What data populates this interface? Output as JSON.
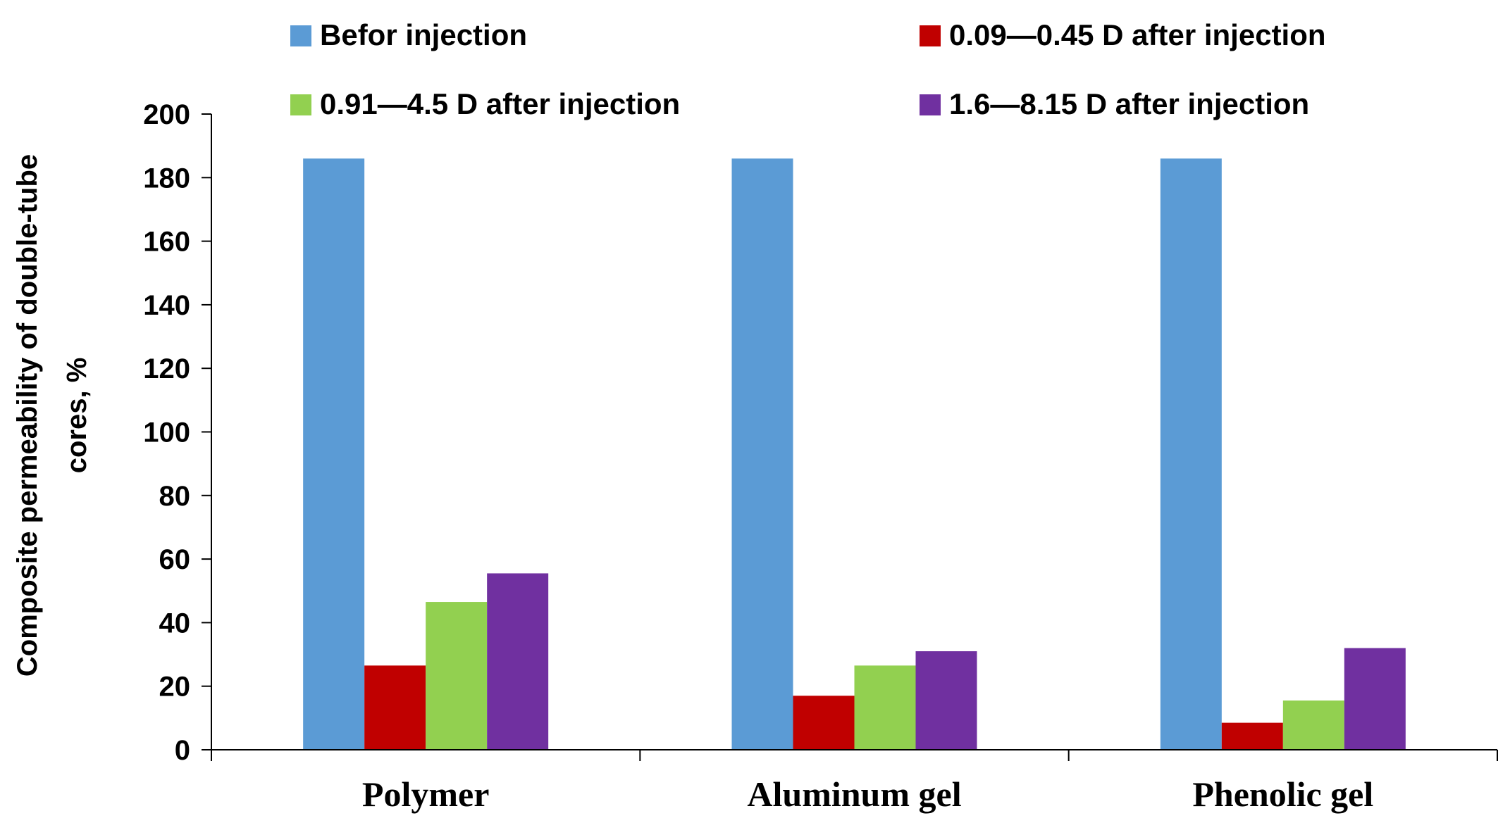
{
  "chart_data": {
    "type": "bar",
    "title": "",
    "xlabel": "",
    "ylabel_lines": [
      "Composite permeability of double-tube",
      "cores,  %"
    ],
    "categories": [
      "Polymer",
      "Aluminum gel",
      "Phenolic gel"
    ],
    "ylim": [
      0,
      200
    ],
    "yticks": [
      0,
      20,
      40,
      60,
      80,
      100,
      120,
      140,
      160,
      180,
      200
    ],
    "grid": false,
    "legend_position": "top",
    "series": [
      {
        "name": "Befor injection",
        "color": "#5B9BD5",
        "values": [
          186,
          186,
          186
        ]
      },
      {
        "name": "0.09—0.45 D after injection",
        "color": "#C00000",
        "values": [
          26.5,
          17,
          8.5
        ]
      },
      {
        "name": "0.91—4.5 D after injection",
        "color": "#92D050",
        "values": [
          46.5,
          26.5,
          15.5
        ]
      },
      {
        "name": "1.6—8.15 D after injection",
        "color": "#7030A0",
        "values": [
          55.5,
          31,
          32
        ]
      }
    ]
  }
}
